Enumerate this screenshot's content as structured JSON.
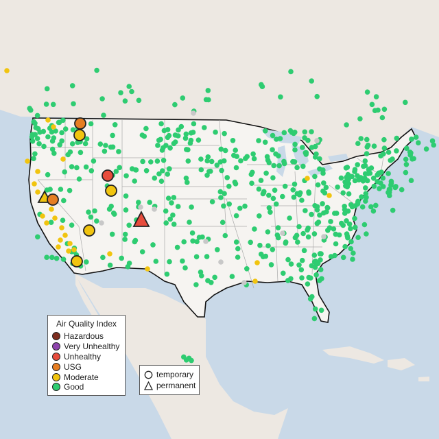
{
  "legend": {
    "title": "Air Quality Index",
    "categories": [
      {
        "label": "Hazardous",
        "color": "#7e2d1f"
      },
      {
        "label": "Very Unhealthy",
        "color": "#8e44ad"
      },
      {
        "label": "Unhealthy",
        "color": "#e74c3c"
      },
      {
        "label": "USG",
        "color": "#e67e22"
      },
      {
        "label": "Moderate",
        "color": "#f1c40f"
      },
      {
        "label": "Good",
        "color": "#2ecc71"
      }
    ]
  },
  "shape_legend": {
    "temporary": "temporary",
    "permanent": "permanent"
  },
  "map_colors": {
    "water": "#c9d9e8",
    "land": "#ede8e2",
    "usa": "#f6f4f1",
    "no_data": "#c8c8c8"
  },
  "highlighted_monitors": [
    {
      "region": "northern Idaho",
      "aqi": "USG",
      "type": "temporary"
    },
    {
      "region": "northern Idaho",
      "aqi": "Moderate",
      "type": "temporary"
    },
    {
      "region": "Utah",
      "aqi": "Unhealthy",
      "type": "temporary"
    },
    {
      "region": "Utah",
      "aqi": "Moderate",
      "type": "temporary"
    },
    {
      "region": "northern California",
      "aqi": "Moderate",
      "type": "permanent"
    },
    {
      "region": "northern California",
      "aqi": "USG",
      "type": "temporary"
    },
    {
      "region": "southern Nevada",
      "aqi": "Moderate",
      "type": "temporary"
    },
    {
      "region": "southern California",
      "aqi": "Moderate",
      "type": "temporary"
    },
    {
      "region": "New Mexico",
      "aqi": "Unhealthy",
      "type": "permanent"
    }
  ]
}
